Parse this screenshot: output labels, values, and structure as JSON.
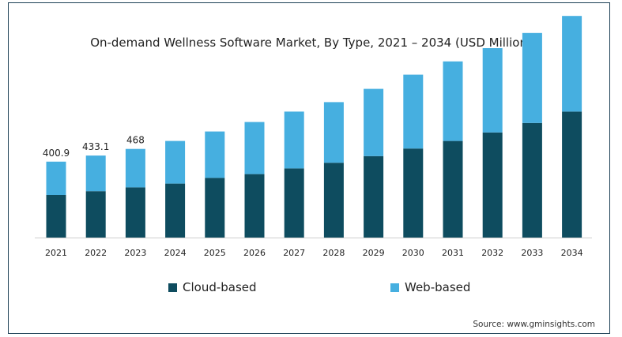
{
  "chart_data": {
    "type": "bar",
    "stacked": true,
    "title": "On-demand Wellness Software Market, By Type, 2021 – 2034 (USD Million)",
    "categories": [
      "2021",
      "2022",
      "2023",
      "2024",
      "2025",
      "2026",
      "2027",
      "2028",
      "2029",
      "2030",
      "2031",
      "2032",
      "2033",
      "2034"
    ],
    "series": [
      {
        "name": "Cloud-based",
        "color": "#0e4c5f",
        "values": [
          225,
          245,
          265,
          285,
          315,
          335,
          365,
          395,
          430,
          470,
          510,
          555,
          605,
          665
        ]
      },
      {
        "name": "Web-based",
        "color": "#46afe0",
        "values": [
          176,
          188,
          203,
          225,
          245,
          275,
          300,
          320,
          355,
          390,
          420,
          445,
          475,
          505
        ]
      }
    ],
    "totals_labels": [
      "400.9",
      "433.1",
      "468"
    ],
    "ylim": [
      0,
      1200
    ],
    "grid": false,
    "legend_position": "bottom"
  },
  "source": "Source: www.gminsights.com"
}
